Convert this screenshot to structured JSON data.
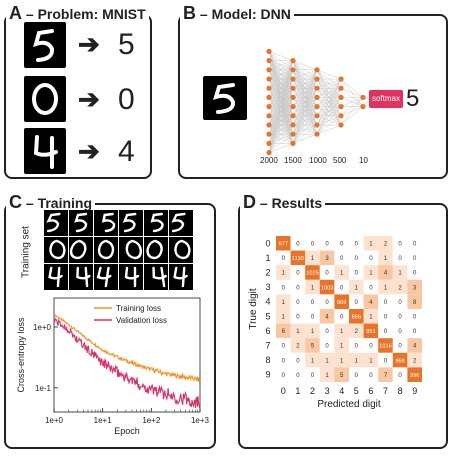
{
  "panelA": {
    "letter": "A",
    "title": "– Problem: MNIST",
    "rows": [
      {
        "glyph": "5",
        "label": "5"
      },
      {
        "glyph": "0",
        "label": "0"
      },
      {
        "glyph": "4",
        "label": "4"
      }
    ],
    "arrow": "➔"
  },
  "panelB": {
    "letter": "B",
    "title": "– Model: DNN",
    "input_glyph": "5",
    "layers": [
      "2000",
      "1500",
      "1000",
      "500",
      "10"
    ],
    "softmax": "softmax",
    "output": "5",
    "colors": {
      "node": "#e8742a",
      "softmax": "#e0325f"
    }
  },
  "panelC": {
    "letter": "C",
    "title": "– Training",
    "training_set_label": "Training set",
    "training_set": [
      [
        "5",
        "5",
        "5",
        "5",
        "5",
        "5"
      ],
      [
        "0",
        "0",
        "0",
        "0",
        "0",
        "0"
      ],
      [
        "4",
        "4",
        "4",
        "4",
        "4",
        "4"
      ]
    ]
  },
  "panelD": {
    "letter": "D",
    "title": "– Results"
  },
  "chart_data": [
    {
      "type": "line",
      "xlabel": "Epoch",
      "ylabel": "Cross-entropy loss",
      "xscale": "log",
      "yscale": "log",
      "xlim": [
        1,
        1000
      ],
      "ylim": [
        0.04,
        3
      ],
      "xticks": [
        "1e+0",
        "1e+1",
        "1e+2",
        "1e+3"
      ],
      "yticks": [
        "1e+0",
        "1e-1"
      ],
      "legend": "top-right",
      "series": [
        {
          "name": "Training loss",
          "color": "#f0941e",
          "x": [
            1,
            2,
            3,
            5,
            8,
            10,
            20,
            30,
            50,
            80,
            100,
            200,
            300,
            500,
            800,
            1000
          ],
          "y": [
            1.6,
            1.1,
            0.85,
            0.62,
            0.48,
            0.42,
            0.32,
            0.28,
            0.24,
            0.21,
            0.2,
            0.17,
            0.16,
            0.15,
            0.14,
            0.135
          ]
        },
        {
          "name": "Validation loss",
          "color": "#d6336c",
          "x": [
            1,
            2,
            3,
            5,
            8,
            10,
            20,
            30,
            50,
            80,
            100,
            200,
            300,
            500,
            800,
            1000
          ],
          "y": [
            1.3,
            0.9,
            0.62,
            0.42,
            0.3,
            0.26,
            0.18,
            0.15,
            0.12,
            0.1,
            0.095,
            0.08,
            0.072,
            0.065,
            0.06,
            0.057
          ]
        }
      ]
    },
    {
      "type": "heatmap",
      "xlabel": "Predicted digit",
      "ylabel": "True digit",
      "categories": [
        "0",
        "1",
        "2",
        "3",
        "4",
        "5",
        "6",
        "7",
        "8",
        "9"
      ],
      "values": [
        [
          977,
          0,
          0,
          0,
          0,
          0,
          1,
          2,
          0,
          0
        ],
        [
          0,
          1130,
          1,
          3,
          0,
          0,
          0,
          1,
          0,
          0
        ],
        [
          1,
          0,
          1025,
          0,
          1,
          0,
          1,
          4,
          1,
          0
        ],
        [
          0,
          0,
          1,
          1003,
          0,
          1,
          0,
          1,
          2,
          3
        ],
        [
          1,
          0,
          0,
          0,
          969,
          0,
          4,
          0,
          0,
          8
        ],
        [
          1,
          0,
          0,
          4,
          0,
          886,
          1,
          0,
          0,
          0
        ],
        [
          6,
          1,
          1,
          0,
          1,
          2,
          951,
          0,
          0,
          0
        ],
        [
          0,
          2,
          5,
          0,
          1,
          0,
          0,
          1016,
          0,
          4
        ],
        [
          0,
          0,
          1,
          1,
          1,
          1,
          1,
          0,
          968,
          2
        ],
        [
          0,
          0,
          0,
          1,
          5,
          0,
          0,
          7,
          0,
          996
        ]
      ]
    }
  ]
}
